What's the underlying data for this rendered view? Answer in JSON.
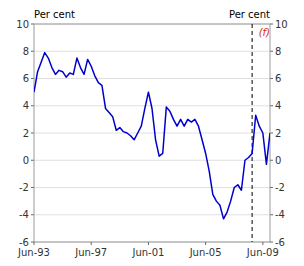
{
  "chart_data": {
    "type": "line",
    "ylabel": "Per cent",
    "y2label": "Per cent",
    "annotation": "(f)",
    "color": "#0000cc",
    "grid": true,
    "ylim": [
      -6,
      10
    ],
    "yticks": [
      -6,
      -4,
      -2,
      0,
      2,
      4,
      6,
      8,
      10
    ],
    "y2lim": [
      -6,
      10
    ],
    "y2ticks": [
      -6,
      -4,
      -2,
      0,
      2,
      4,
      6,
      8,
      10
    ],
    "vline": 61,
    "categories": [
      "Jun-93",
      null,
      null,
      null,
      null,
      null,
      null,
      null,
      null,
      null,
      null,
      null,
      null,
      null,
      null,
      null,
      "Jun-97",
      null,
      null,
      null,
      null,
      null,
      null,
      null,
      null,
      null,
      null,
      null,
      null,
      null,
      null,
      null,
      "Jun-01",
      null,
      null,
      null,
      null,
      null,
      null,
      null,
      null,
      null,
      null,
      null,
      null,
      null,
      null,
      null,
      "Jun-05",
      null,
      null,
      null,
      null,
      null,
      null,
      null,
      null,
      null,
      null,
      null,
      null,
      null,
      null,
      null,
      "Jun-09",
      null,
      null
    ],
    "values": [
      5.0,
      6.5,
      7.2,
      7.9,
      7.5,
      6.8,
      6.3,
      6.6,
      6.5,
      6.1,
      6.4,
      6.3,
      7.5,
      6.8,
      6.3,
      7.4,
      6.9,
      6.2,
      5.7,
      5.5,
      3.8,
      3.5,
      3.2,
      2.2,
      2.4,
      2.1,
      2.0,
      1.8,
      1.5,
      2.0,
      2.5,
      3.8,
      5.0,
      3.8,
      1.5,
      0.3,
      0.5,
      3.9,
      3.6,
      3.0,
      2.5,
      3.0,
      2.5,
      3.0,
      2.8,
      3.0,
      2.5,
      1.5,
      0.5,
      -0.8,
      -2.5,
      -3.0,
      -3.3,
      -4.3,
      -3.8,
      -3.0,
      -2.0,
      -1.8,
      -2.2,
      0.0,
      0.2,
      0.5,
      3.3,
      2.5,
      2.0,
      -0.3,
      2.0
    ]
  }
}
